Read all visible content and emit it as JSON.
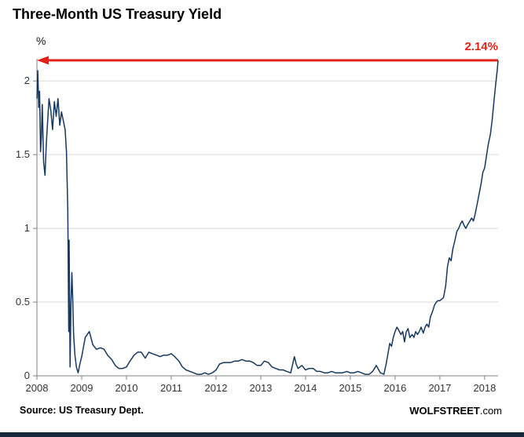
{
  "colors": {
    "grid": "#d9d9d9",
    "axis": "#808080",
    "line": "#17375e",
    "accent_red": "#e32119",
    "bottom_bar": "#16273b"
  },
  "footer": {
    "source": "Source: US Treasury Dept.",
    "brand_bold": "WOLFSTREET",
    "brand_rest": ".com"
  },
  "chart_data": {
    "type": "line",
    "title": "Three-Month US Treasury Yield",
    "xlabel": "",
    "ylabel": "%",
    "xlim": [
      2008,
      2018.3
    ],
    "ylim": [
      0,
      2.15
    ],
    "x_ticks": [
      2008,
      2009,
      2010,
      2011,
      2012,
      2013,
      2014,
      2015,
      2016,
      2017,
      2018
    ],
    "y_ticks": [
      0,
      0.5,
      1,
      1.5,
      2
    ],
    "grid": "horizontal",
    "legend": "none",
    "annotations": [
      {
        "type": "arrow-left",
        "y": 2.14,
        "label": "2.14%",
        "color": "#e32119"
      }
    ],
    "series": [
      {
        "name": "3-Month US Treasury Yield (%)",
        "color": "#17375e",
        "points": [
          [
            2008.0,
            1.88
          ],
          [
            2008.02,
            2.07
          ],
          [
            2008.04,
            1.82
          ],
          [
            2008.06,
            1.93
          ],
          [
            2008.08,
            1.52
          ],
          [
            2008.1,
            1.62
          ],
          [
            2008.12,
            1.84
          ],
          [
            2008.15,
            1.45
          ],
          [
            2008.18,
            1.36
          ],
          [
            2008.21,
            1.58
          ],
          [
            2008.24,
            1.73
          ],
          [
            2008.27,
            1.88
          ],
          [
            2008.31,
            1.8
          ],
          [
            2008.35,
            1.67
          ],
          [
            2008.39,
            1.86
          ],
          [
            2008.43,
            1.76
          ],
          [
            2008.47,
            1.88
          ],
          [
            2008.51,
            1.7
          ],
          [
            2008.55,
            1.79
          ],
          [
            2008.59,
            1.73
          ],
          [
            2008.63,
            1.67
          ],
          [
            2008.66,
            1.52
          ],
          [
            2008.69,
            1.12
          ],
          [
            2008.71,
            0.3
          ],
          [
            2008.72,
            0.92
          ],
          [
            2008.74,
            0.06
          ],
          [
            2008.76,
            0.48
          ],
          [
            2008.78,
            0.7
          ],
          [
            2008.8,
            0.52
          ],
          [
            2008.82,
            0.28
          ],
          [
            2008.85,
            0.14
          ],
          [
            2008.88,
            0.06
          ],
          [
            2008.92,
            0.02
          ],
          [
            2008.96,
            0.08
          ],
          [
            2009.0,
            0.13
          ],
          [
            2009.08,
            0.26
          ],
          [
            2009.17,
            0.3
          ],
          [
            2009.25,
            0.21
          ],
          [
            2009.33,
            0.18
          ],
          [
            2009.42,
            0.19
          ],
          [
            2009.5,
            0.18
          ],
          [
            2009.58,
            0.14
          ],
          [
            2009.67,
            0.11
          ],
          [
            2009.75,
            0.07
          ],
          [
            2009.83,
            0.05
          ],
          [
            2009.92,
            0.05
          ],
          [
            2010.0,
            0.06
          ],
          [
            2010.08,
            0.1
          ],
          [
            2010.17,
            0.14
          ],
          [
            2010.25,
            0.16
          ],
          [
            2010.33,
            0.16
          ],
          [
            2010.42,
            0.12
          ],
          [
            2010.5,
            0.16
          ],
          [
            2010.58,
            0.15
          ],
          [
            2010.67,
            0.14
          ],
          [
            2010.75,
            0.13
          ],
          [
            2010.83,
            0.14
          ],
          [
            2010.92,
            0.14
          ],
          [
            2011.0,
            0.15
          ],
          [
            2011.08,
            0.13
          ],
          [
            2011.17,
            0.1
          ],
          [
            2011.25,
            0.06
          ],
          [
            2011.33,
            0.04
          ],
          [
            2011.42,
            0.03
          ],
          [
            2011.5,
            0.02
          ],
          [
            2011.58,
            0.01
          ],
          [
            2011.67,
            0.01
          ],
          [
            2011.75,
            0.02
          ],
          [
            2011.83,
            0.01
          ],
          [
            2011.92,
            0.02
          ],
          [
            2012.0,
            0.04
          ],
          [
            2012.08,
            0.08
          ],
          [
            2012.17,
            0.09
          ],
          [
            2012.25,
            0.09
          ],
          [
            2012.33,
            0.09
          ],
          [
            2012.42,
            0.1
          ],
          [
            2012.5,
            0.1
          ],
          [
            2012.58,
            0.11
          ],
          [
            2012.67,
            0.1
          ],
          [
            2012.75,
            0.1
          ],
          [
            2012.83,
            0.09
          ],
          [
            2012.92,
            0.07
          ],
          [
            2013.0,
            0.07
          ],
          [
            2013.08,
            0.1
          ],
          [
            2013.17,
            0.09
          ],
          [
            2013.25,
            0.06
          ],
          [
            2013.33,
            0.05
          ],
          [
            2013.42,
            0.04
          ],
          [
            2013.5,
            0.04
          ],
          [
            2013.58,
            0.03
          ],
          [
            2013.67,
            0.02
          ],
          [
            2013.75,
            0.13
          ],
          [
            2013.79,
            0.08
          ],
          [
            2013.83,
            0.05
          ],
          [
            2013.92,
            0.07
          ],
          [
            2014.0,
            0.04
          ],
          [
            2014.08,
            0.05
          ],
          [
            2014.17,
            0.05
          ],
          [
            2014.25,
            0.03
          ],
          [
            2014.33,
            0.03
          ],
          [
            2014.42,
            0.02
          ],
          [
            2014.5,
            0.02
          ],
          [
            2014.58,
            0.03
          ],
          [
            2014.67,
            0.02
          ],
          [
            2014.75,
            0.02
          ],
          [
            2014.83,
            0.02
          ],
          [
            2014.92,
            0.03
          ],
          [
            2015.0,
            0.02
          ],
          [
            2015.08,
            0.02
          ],
          [
            2015.17,
            0.03
          ],
          [
            2015.25,
            0.02
          ],
          [
            2015.33,
            0.01
          ],
          [
            2015.42,
            0.01
          ],
          [
            2015.5,
            0.03
          ],
          [
            2015.58,
            0.07
          ],
          [
            2015.67,
            0.02
          ],
          [
            2015.75,
            0.01
          ],
          [
            2015.8,
            0.08
          ],
          [
            2015.83,
            0.13
          ],
          [
            2015.88,
            0.22
          ],
          [
            2015.92,
            0.2
          ],
          [
            2015.96,
            0.26
          ],
          [
            2016.0,
            0.3
          ],
          [
            2016.04,
            0.33
          ],
          [
            2016.08,
            0.31
          ],
          [
            2016.13,
            0.28
          ],
          [
            2016.17,
            0.3
          ],
          [
            2016.21,
            0.23
          ],
          [
            2016.25,
            0.3
          ],
          [
            2016.29,
            0.32
          ],
          [
            2016.33,
            0.26
          ],
          [
            2016.38,
            0.28
          ],
          [
            2016.42,
            0.26
          ],
          [
            2016.46,
            0.3
          ],
          [
            2016.5,
            0.28
          ],
          [
            2016.54,
            0.3
          ],
          [
            2016.58,
            0.33
          ],
          [
            2016.63,
            0.29
          ],
          [
            2016.67,
            0.33
          ],
          [
            2016.71,
            0.35
          ],
          [
            2016.75,
            0.33
          ],
          [
            2016.79,
            0.4
          ],
          [
            2016.83,
            0.43
          ],
          [
            2016.88,
            0.48
          ],
          [
            2016.92,
            0.5
          ],
          [
            2016.96,
            0.51
          ],
          [
            2017.0,
            0.51
          ],
          [
            2017.04,
            0.52
          ],
          [
            2017.08,
            0.53
          ],
          [
            2017.13,
            0.61
          ],
          [
            2017.17,
            0.74
          ],
          [
            2017.21,
            0.8
          ],
          [
            2017.25,
            0.78
          ],
          [
            2017.29,
            0.86
          ],
          [
            2017.33,
            0.91
          ],
          [
            2017.38,
            0.98
          ],
          [
            2017.42,
            1.0
          ],
          [
            2017.46,
            1.03
          ],
          [
            2017.5,
            1.05
          ],
          [
            2017.54,
            1.02
          ],
          [
            2017.58,
            1.0
          ],
          [
            2017.63,
            1.03
          ],
          [
            2017.67,
            1.05
          ],
          [
            2017.71,
            1.07
          ],
          [
            2017.75,
            1.05
          ],
          [
            2017.79,
            1.1
          ],
          [
            2017.83,
            1.16
          ],
          [
            2017.88,
            1.24
          ],
          [
            2017.92,
            1.3
          ],
          [
            2017.96,
            1.38
          ],
          [
            2018.0,
            1.41
          ],
          [
            2018.04,
            1.49
          ],
          [
            2018.08,
            1.57
          ],
          [
            2018.13,
            1.64
          ],
          [
            2018.17,
            1.74
          ],
          [
            2018.21,
            1.87
          ],
          [
            2018.25,
            1.99
          ],
          [
            2018.28,
            2.07
          ],
          [
            2018.3,
            2.14
          ]
        ]
      }
    ]
  }
}
